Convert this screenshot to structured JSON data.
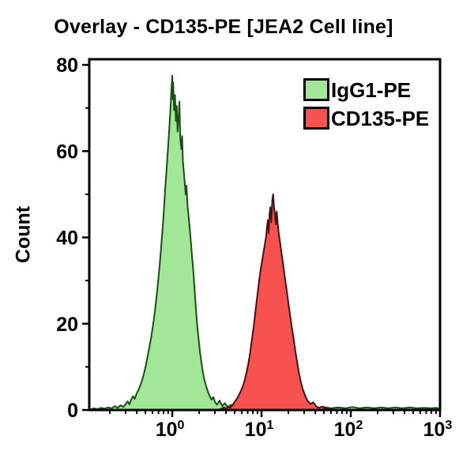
{
  "title": "Overlay - CD135-PE [JEA2 Cell line]",
  "legend": {
    "items": [
      {
        "label": "IgG1-PE",
        "color": "#a2e798",
        "border": "#000000"
      },
      {
        "label": "CD135-PE",
        "color": "#f85250",
        "border": "#000000"
      }
    ]
  },
  "chart_data": {
    "type": "area",
    "subtype": "flow-cytometry-histogram-overlay",
    "title": "Overlay - CD135-PE [JEA2 Cell line]",
    "xlabel": "",
    "ylabel": "Count",
    "x_scale": "log10",
    "xlim_log": [
      -0.93,
      3.0
    ],
    "ylim": [
      0,
      81.3
    ],
    "grid": "off",
    "legend_position": "top-right",
    "x_ticks": [
      {
        "log": 0,
        "base": "10",
        "exp": "0"
      },
      {
        "log": 1,
        "base": "10",
        "exp": "1"
      },
      {
        "log": 2,
        "base": "10",
        "exp": "2"
      },
      {
        "log": 3,
        "base": "10",
        "exp": "3"
      }
    ],
    "y_ticks": [
      0,
      20,
      40,
      60,
      80
    ],
    "y_minor_ticks": [
      10,
      30,
      50,
      70
    ],
    "series": [
      {
        "name": "IgG1-PE",
        "peak_x": 1.0,
        "peak_count": 77.5,
        "fill": "#a2e798",
        "stroke": "#1a4d1a",
        "points_log_count": [
          [
            -0.93,
            0.0
          ],
          [
            -0.88,
            0.4
          ],
          [
            -0.84,
            0.2
          ],
          [
            -0.8,
            0.5
          ],
          [
            -0.76,
            0.3
          ],
          [
            -0.72,
            0.6
          ],
          [
            -0.68,
            0.4
          ],
          [
            -0.64,
            0.9
          ],
          [
            -0.61,
            0.5
          ],
          [
            -0.58,
            1.1
          ],
          [
            -0.55,
            0.7
          ],
          [
            -0.52,
            1.4
          ],
          [
            -0.5,
            2.0
          ],
          [
            -0.48,
            1.3
          ],
          [
            -0.46,
            2.4
          ],
          [
            -0.44,
            3.2
          ],
          [
            -0.42,
            2.6
          ],
          [
            -0.4,
            3.8
          ],
          [
            -0.38,
            4.6
          ],
          [
            -0.36,
            5.6
          ],
          [
            -0.34,
            6.8
          ],
          [
            -0.32,
            8.2
          ],
          [
            -0.3,
            10.0
          ],
          [
            -0.28,
            12.0
          ],
          [
            -0.26,
            14.2
          ],
          [
            -0.24,
            16.5
          ],
          [
            -0.22,
            19.0
          ],
          [
            -0.2,
            22.0
          ],
          [
            -0.18,
            25.5
          ],
          [
            -0.16,
            29.5
          ],
          [
            -0.14,
            34.0
          ],
          [
            -0.13,
            36.5
          ],
          [
            -0.12,
            39.0
          ],
          [
            -0.11,
            41.5
          ],
          [
            -0.1,
            44.5
          ],
          [
            -0.09,
            47.5
          ],
          [
            -0.08,
            51.0
          ],
          [
            -0.07,
            54.0
          ],
          [
            -0.06,
            57.0
          ],
          [
            -0.05,
            60.0
          ],
          [
            -0.04,
            63.0
          ],
          [
            -0.03,
            66.5
          ],
          [
            -0.02,
            70.0
          ],
          [
            -0.01,
            74.0
          ],
          [
            0.0,
            77.5
          ],
          [
            0.005,
            72.0
          ],
          [
            0.01,
            76.0
          ],
          [
            0.02,
            69.5
          ],
          [
            0.03,
            73.0
          ],
          [
            0.04,
            67.0
          ],
          [
            0.05,
            70.5
          ],
          [
            0.06,
            64.5
          ],
          [
            0.07,
            67.5
          ],
          [
            0.08,
            71.5
          ],
          [
            0.09,
            63.0
          ],
          [
            0.1,
            60.5
          ],
          [
            0.11,
            63.5
          ],
          [
            0.12,
            57.5
          ],
          [
            0.13,
            55.0
          ],
          [
            0.14,
            52.5
          ],
          [
            0.15,
            50.0
          ],
          [
            0.16,
            52.0
          ],
          [
            0.17,
            47.5
          ],
          [
            0.18,
            45.5
          ],
          [
            0.19,
            43.5
          ],
          [
            0.2,
            41.0
          ],
          [
            0.21,
            38.5
          ],
          [
            0.22,
            36.0
          ],
          [
            0.23,
            33.5
          ],
          [
            0.24,
            31.0
          ],
          [
            0.25,
            28.0
          ],
          [
            0.26,
            25.0
          ],
          [
            0.27,
            22.0
          ],
          [
            0.28,
            19.5
          ],
          [
            0.29,
            17.5
          ],
          [
            0.3,
            15.5
          ],
          [
            0.31,
            13.5
          ],
          [
            0.32,
            12.0
          ],
          [
            0.33,
            10.5
          ],
          [
            0.34,
            9.0
          ],
          [
            0.35,
            8.0
          ],
          [
            0.36,
            7.0
          ],
          [
            0.38,
            5.5
          ],
          [
            0.4,
            4.2
          ],
          [
            0.42,
            3.2
          ],
          [
            0.44,
            2.4
          ],
          [
            0.46,
            3.0
          ],
          [
            0.48,
            1.8
          ],
          [
            0.5,
            1.2
          ],
          [
            0.53,
            2.2
          ],
          [
            0.56,
            0.9
          ],
          [
            0.59,
            1.6
          ],
          [
            0.62,
            0.7
          ],
          [
            0.66,
            1.2
          ],
          [
            0.7,
            0.6
          ],
          [
            0.75,
            1.0
          ],
          [
            0.8,
            0.5
          ],
          [
            0.85,
            0.9
          ],
          [
            0.9,
            0.5
          ],
          [
            0.96,
            0.8
          ],
          [
            1.02,
            0.4
          ],
          [
            1.08,
            0.7
          ],
          [
            1.15,
            0.4
          ],
          [
            1.22,
            0.8
          ],
          [
            1.3,
            0.5
          ],
          [
            1.38,
            0.7
          ],
          [
            1.46,
            0.4
          ],
          [
            1.54,
            0.8
          ],
          [
            1.62,
            0.5
          ],
          [
            1.7,
            0.7
          ],
          [
            1.78,
            0.4
          ],
          [
            1.86,
            0.6
          ],
          [
            1.94,
            0.4
          ],
          [
            2.02,
            0.7
          ],
          [
            2.1,
            0.4
          ],
          [
            2.18,
            0.6
          ],
          [
            2.26,
            0.4
          ],
          [
            2.34,
            0.6
          ],
          [
            2.42,
            0.4
          ],
          [
            2.5,
            0.6
          ],
          [
            2.58,
            0.4
          ],
          [
            2.66,
            0.6
          ],
          [
            2.74,
            0.4
          ],
          [
            2.82,
            0.5
          ],
          [
            2.9,
            0.4
          ],
          [
            2.96,
            0.5
          ],
          [
            3.0,
            0.3
          ]
        ]
      },
      {
        "name": "CD135-PE",
        "peak_x": 13.5,
        "peak_count": 50.0,
        "fill": "#f85250",
        "stroke": "#441111",
        "points_log_count": [
          [
            0.5,
            0.0
          ],
          [
            0.55,
            0.3
          ],
          [
            0.58,
            0.6
          ],
          [
            0.6,
            0.3
          ],
          [
            0.63,
            0.8
          ],
          [
            0.65,
            0.5
          ],
          [
            0.67,
            1.0
          ],
          [
            0.69,
            1.6
          ],
          [
            0.71,
            2.2
          ],
          [
            0.73,
            2.8
          ],
          [
            0.75,
            3.6
          ],
          [
            0.77,
            4.5
          ],
          [
            0.79,
            5.5
          ],
          [
            0.81,
            6.8
          ],
          [
            0.83,
            8.5
          ],
          [
            0.85,
            10.5
          ],
          [
            0.87,
            13.0
          ],
          [
            0.89,
            16.0
          ],
          [
            0.91,
            19.0
          ],
          [
            0.93,
            22.5
          ],
          [
            0.95,
            26.0
          ],
          [
            0.97,
            29.5
          ],
          [
            0.99,
            32.5
          ],
          [
            1.01,
            35.0
          ],
          [
            1.03,
            37.5
          ],
          [
            1.05,
            40.0
          ],
          [
            1.06,
            42.0
          ],
          [
            1.07,
            44.0
          ],
          [
            1.08,
            41.0
          ],
          [
            1.09,
            45.5
          ],
          [
            1.1,
            47.0
          ],
          [
            1.11,
            43.5
          ],
          [
            1.12,
            48.5
          ],
          [
            1.13,
            50.0
          ],
          [
            1.14,
            47.0
          ],
          [
            1.15,
            45.5
          ],
          [
            1.16,
            43.0
          ],
          [
            1.17,
            46.0
          ],
          [
            1.18,
            43.5
          ],
          [
            1.19,
            41.5
          ],
          [
            1.2,
            40.0
          ],
          [
            1.21,
            38.5
          ],
          [
            1.22,
            37.0
          ],
          [
            1.24,
            34.0
          ],
          [
            1.26,
            31.0
          ],
          [
            1.28,
            28.0
          ],
          [
            1.3,
            25.0
          ],
          [
            1.32,
            22.0
          ],
          [
            1.34,
            19.0
          ],
          [
            1.36,
            16.5
          ],
          [
            1.38,
            13.5
          ],
          [
            1.4,
            11.0
          ],
          [
            1.42,
            8.5
          ],
          [
            1.44,
            6.5
          ],
          [
            1.46,
            5.0
          ],
          [
            1.48,
            3.8
          ],
          [
            1.5,
            2.8
          ],
          [
            1.52,
            2.0
          ],
          [
            1.55,
            1.4
          ],
          [
            1.58,
            1.8
          ],
          [
            1.61,
            0.9
          ],
          [
            1.64,
            0.5
          ],
          [
            1.68,
            0.8
          ],
          [
            1.72,
            0.3
          ],
          [
            1.76,
            0.2
          ],
          [
            1.8,
            0.0
          ]
        ]
      }
    ]
  }
}
